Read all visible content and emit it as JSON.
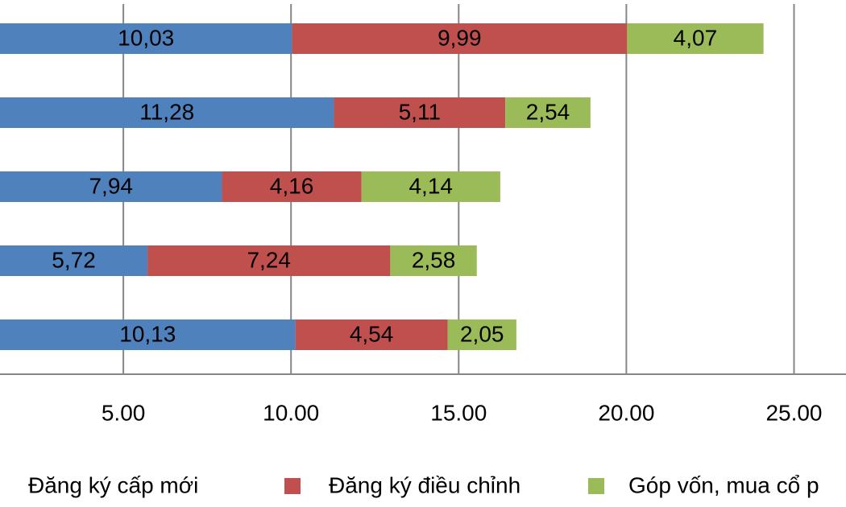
{
  "chart_data": {
    "type": "stacked-bar-horizontal",
    "categories": [
      null,
      null,
      null,
      null,
      null
    ],
    "series": [
      {
        "name": "Đăng ký cấp mới",
        "color": "#4f81bd",
        "values": [
          10.03,
          11.28,
          7.94,
          5.72,
          10.13
        ],
        "value_labels": [
          "10,03",
          "11,28",
          "7,94",
          "5,72",
          "10,13"
        ]
      },
      {
        "name": "Đăng ký điều chỉnh",
        "color": "#c0504d",
        "values": [
          9.99,
          5.11,
          4.16,
          7.24,
          4.54
        ],
        "value_labels": [
          "9,99",
          "5,11",
          "4,16",
          "7,24",
          "4,54"
        ]
      },
      {
        "name": "Góp vốn, mua cổ p",
        "color": "#9bbb59",
        "values": [
          4.07,
          2.54,
          4.14,
          2.58,
          2.05
        ],
        "value_labels": [
          "4,07",
          "2,54",
          "4,14",
          "2,58",
          "2,05"
        ]
      }
    ],
    "xlim": [
      0,
      26.55
    ],
    "xticks": [
      {
        "value": 5,
        "label": "5.00"
      },
      {
        "value": 10,
        "label": "10.00"
      },
      {
        "value": 15,
        "label": "15.00"
      },
      {
        "value": 20,
        "label": "20.00"
      },
      {
        "value": 25,
        "label": "25.00"
      }
    ],
    "grid": true,
    "legend": "bottom"
  }
}
